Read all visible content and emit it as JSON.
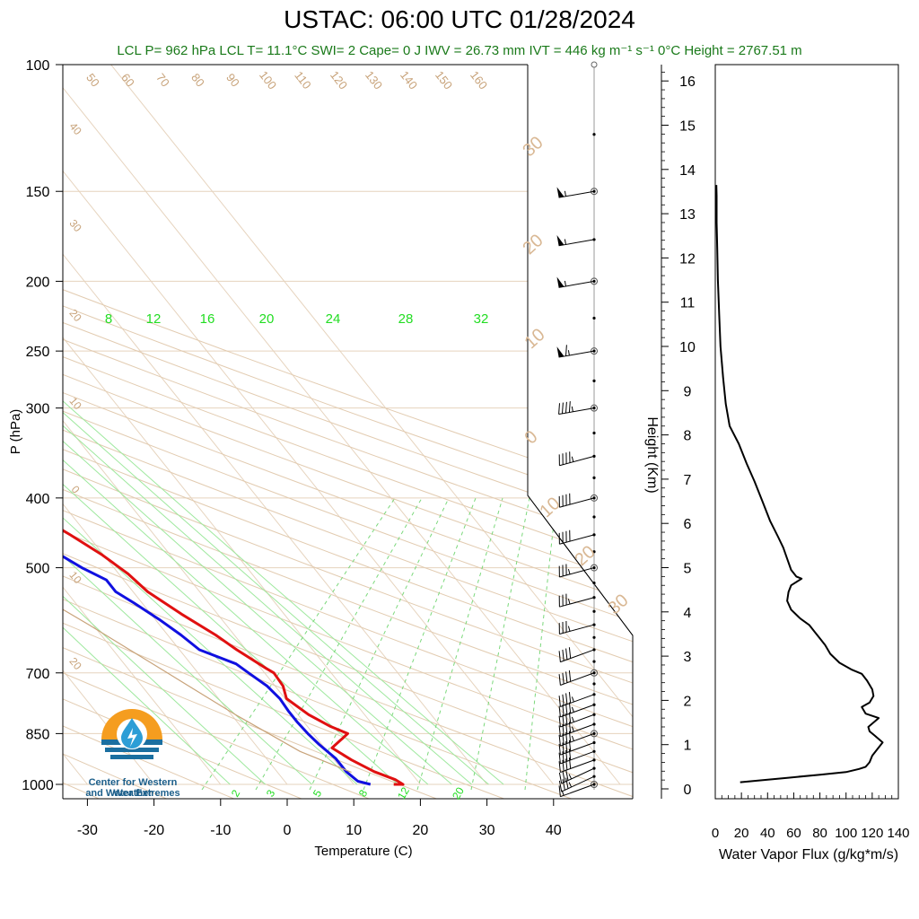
{
  "title": "USTAC: 06:00 UTC 01/28/2024",
  "subtitle": "LCL P= 962 hPa  LCL T= 11.1°C  SWI= 2  Cape= 0 J  IWV = 26.73 mm  IVT = 446 kg m⁻¹ s⁻¹  0°C Height = 2767.51 m",
  "logo": {
    "line1": "Center for Western Weather",
    "line2": "and Water Extremes"
  },
  "chart_data": [
    {
      "type": "line",
      "subtype": "skew-t",
      "xlabel": "Temperature (C)",
      "ylabel": "P (hPa)",
      "y_scale": "log-reversed",
      "xlim": [
        -34,
        48
      ],
      "ylim": [
        1000,
        100
      ],
      "x_ticks": [
        "-30",
        "-20",
        "-10",
        "0",
        "10",
        "20",
        "30",
        "40"
      ],
      "x_tick_values": [
        -30,
        -20,
        -10,
        0,
        10,
        20,
        30,
        40
      ],
      "y_ticks": [
        "100",
        "150",
        "200",
        "250",
        "300",
        "400",
        "500",
        "700",
        "850",
        "1000"
      ],
      "y_tick_values": [
        100,
        150,
        200,
        250,
        300,
        400,
        500,
        700,
        850,
        1000
      ],
      "isotherm_labels_top": [
        "50",
        "60",
        "70",
        "80",
        "90",
        "100",
        "110",
        "120",
        "130",
        "140",
        "150",
        "160"
      ],
      "isotherm_labels_left": [
        "40",
        "30",
        "20",
        "10",
        "0",
        "10",
        "20"
      ],
      "isotherm_labels_right": [
        "30",
        "20",
        "10",
        "0",
        "10",
        "20",
        "30"
      ],
      "mixing_ratio_labels_upper": [
        "8",
        "12",
        "16",
        "20",
        "24",
        "28",
        "32"
      ],
      "mixing_ratio_labels_lower": [
        "2",
        "3",
        "5",
        "8",
        "12",
        "20"
      ],
      "series": [
        {
          "color": "#e01010",
          "points": [
            [
              16,
              1000
            ],
            [
              17.4,
              1000
            ],
            [
              16.8,
              985
            ],
            [
              14.6,
              960
            ],
            [
              12.6,
              925
            ],
            [
              11.1,
              890
            ],
            [
              15.2,
              850
            ],
            [
              13.4,
              830
            ],
            [
              11.6,
              800
            ],
            [
              10.2,
              760
            ],
            [
              11.2,
              730
            ],
            [
              11.4,
              700
            ],
            [
              10.8,
              690
            ],
            [
              8.6,
              650
            ],
            [
              7.2,
              620
            ],
            [
              4.6,
              580
            ],
            [
              2.2,
              540
            ],
            [
              1.4,
              510
            ],
            [
              -0.2,
              480
            ],
            [
              -2.6,
              450
            ],
            [
              -5.4,
              420
            ],
            [
              -8.2,
              390
            ],
            [
              -11.8,
              360
            ],
            [
              -15.2,
              330
            ],
            [
              -19.4,
              300
            ],
            [
              -23.6,
              275
            ],
            [
              -29.6,
              250
            ],
            [
              -34.4,
              228
            ],
            [
              -34.5,
              220
            ],
            [
              -34.4,
              215
            ],
            [
              -34.2,
              208
            ],
            [
              -34.8,
              196
            ],
            [
              -34.2,
              189
            ],
            [
              -30.2,
              186
            ],
            [
              -24.6,
              182
            ],
            [
              -21.4,
              176
            ],
            [
              -18.8,
              170
            ],
            [
              -14.4,
              165
            ],
            [
              -11.6,
              160
            ],
            [
              -9.6,
              157
            ],
            [
              -8.0,
              152
            ],
            [
              -7.8,
              150
            ]
          ]
        },
        {
          "color": "#1010e0",
          "points": [
            [
              12.5,
              1000
            ],
            [
              11.0,
              990
            ],
            [
              10.4,
              960
            ],
            [
              10.4,
              920
            ],
            [
              9.6,
              880
            ],
            [
              9.2,
              850
            ],
            [
              9.0,
              820
            ],
            [
              9.0,
              790
            ],
            [
              9.2,
              760
            ],
            [
              8.8,
              730
            ],
            [
              7.6,
              700
            ],
            [
              6.8,
              680
            ],
            [
              3.0,
              650
            ],
            [
              2.0,
              620
            ],
            [
              0.6,
              590
            ],
            [
              -1.2,
              560
            ],
            [
              -2.6,
              540
            ],
            [
              -2.6,
              520
            ],
            [
              -4.8,
              500
            ],
            [
              -7.4,
              470
            ],
            [
              -9.4,
              445
            ],
            [
              -11.6,
              420
            ],
            [
              -15.0,
              400
            ],
            [
              -18.2,
              385
            ],
            [
              -20.2,
              372
            ],
            [
              -20.2,
              365
            ],
            [
              -23.6,
              355
            ],
            [
              -27.6,
              335
            ],
            [
              -28.0,
              315
            ],
            [
              -29.0,
              295
            ],
            [
              -31.4,
              280
            ],
            [
              -33.2,
              262
            ],
            [
              -34.6,
              245
            ],
            [
              -36.8,
              235
            ],
            [
              -39.6,
              228
            ],
            [
              -38.4,
              220
            ],
            [
              -34.4,
              210
            ],
            [
              -35.4,
              200
            ],
            [
              -32.4,
              192
            ],
            [
              -32.0,
              188
            ],
            [
              -39.6,
              184
            ],
            [
              -45.4,
              180
            ],
            [
              -47.2,
              177
            ],
            [
              -45.4,
              172
            ],
            [
              -44.2,
              167
            ],
            [
              -42.2,
              162
            ],
            [
              -40.6,
              156
            ],
            [
              -40.0,
              152
            ],
            [
              -39.8,
              150
            ]
          ]
        },
        {
          "color": "#c8a37a",
          "points": [
            [
              11.1,
              962
            ],
            [
              5.9,
              900
            ],
            [
              0.6,
              800
            ],
            [
              -4.6,
              700
            ],
            [
              -10.6,
              600
            ],
            [
              -18.3,
              500
            ],
            [
              -28.5,
              400
            ],
            [
              -39.4,
              320
            ],
            [
              -56.3,
              230
            ],
            [
              -58.9,
              218
            ],
            [
              -38.6,
              140
            ],
            [
              -28.5,
              100
            ]
          ]
        }
      ],
      "wind_profile": {
        "levels_hpa": [
          1000,
          975,
          950,
          925,
          900,
          875,
          850,
          825,
          800,
          775,
          750,
          700,
          650,
          600,
          550,
          500,
          450,
          400,
          350,
          300,
          250,
          200,
          175,
          150
        ],
        "speed_kt": [
          15,
          35,
          35,
          40,
          40,
          40,
          45,
          45,
          45,
          45,
          45,
          40,
          40,
          35,
          35,
          35,
          40,
          40,
          45,
          45,
          65,
          55,
          55,
          55
        ],
        "direction_deg": [
          250,
          245,
          245,
          250,
          250,
          250,
          250,
          250,
          250,
          250,
          250,
          250,
          250,
          255,
          255,
          255,
          255,
          255,
          255,
          260,
          260,
          260,
          260,
          260
        ]
      }
    },
    {
      "type": "line",
      "xlabel": "Water Vapor Flux (g/kg*m/s)",
      "ylabel": "Height (Km)",
      "xlim": [
        0,
        140
      ],
      "ylim": [
        0,
        16.3
      ],
      "x_ticks": [
        "0",
        "20",
        "40",
        "60",
        "80",
        "100",
        "120",
        "140"
      ],
      "x_tick_values": [
        0,
        20,
        40,
        60,
        80,
        100,
        120,
        140
      ],
      "y_ticks": [
        "0",
        "1",
        "2",
        "3",
        "4",
        "5",
        "6",
        "7",
        "8",
        "9",
        "10",
        "11",
        "12",
        "13",
        "14",
        "15",
        "16"
      ],
      "y_tick_values": [
        0,
        1,
        2,
        3,
        4,
        5,
        6,
        7,
        8,
        9,
        10,
        11,
        12,
        13,
        14,
        15,
        16
      ],
      "series": [
        {
          "color": "#000000",
          "points": [
            [
              19,
              0.15
            ],
            [
              30,
              0.18
            ],
            [
              55,
              0.25
            ],
            [
              80,
              0.32
            ],
            [
              100,
              0.38
            ],
            [
              110,
              0.45
            ],
            [
              115,
              0.5
            ],
            [
              118,
              0.6
            ],
            [
              120,
              0.75
            ],
            [
              128,
              1.05
            ],
            [
              122,
              1.2
            ],
            [
              118,
              1.3
            ],
            [
              117,
              1.4
            ],
            [
              125,
              1.6
            ],
            [
              115,
              1.7
            ],
            [
              112,
              1.85
            ],
            [
              118,
              1.95
            ],
            [
              121,
              2.1
            ],
            [
              120,
              2.25
            ],
            [
              119,
              2.3
            ],
            [
              117,
              2.4
            ],
            [
              116,
              2.45
            ],
            [
              112,
              2.6
            ],
            [
              104,
              2.7
            ],
            [
              95,
              2.85
            ],
            [
              88,
              3.05
            ],
            [
              84,
              3.25
            ],
            [
              80,
              3.4
            ],
            [
              76,
              3.55
            ],
            [
              72,
              3.7
            ],
            [
              65,
              3.85
            ],
            [
              58,
              4.05
            ],
            [
              55,
              4.25
            ],
            [
              56,
              4.45
            ],
            [
              58,
              4.6
            ],
            [
              66,
              4.75
            ],
            [
              62,
              4.8
            ],
            [
              58,
              4.95
            ],
            [
              55,
              5.2
            ],
            [
              52,
              5.45
            ],
            [
              48,
              5.7
            ],
            [
              42,
              6.05
            ],
            [
              36,
              6.5
            ],
            [
              30,
              6.95
            ],
            [
              24,
              7.35
            ],
            [
              18,
              7.8
            ],
            [
              11,
              8.2
            ],
            [
              8,
              8.7
            ],
            [
              6,
              9.3
            ],
            [
              4,
              10.0
            ],
            [
              3,
              10.7
            ],
            [
              2,
              11.5
            ],
            [
              1.5,
              12.2
            ],
            [
              1,
              12.8
            ],
            [
              1,
              13.4
            ],
            [
              0.8,
              13.65
            ]
          ]
        }
      ]
    }
  ]
}
